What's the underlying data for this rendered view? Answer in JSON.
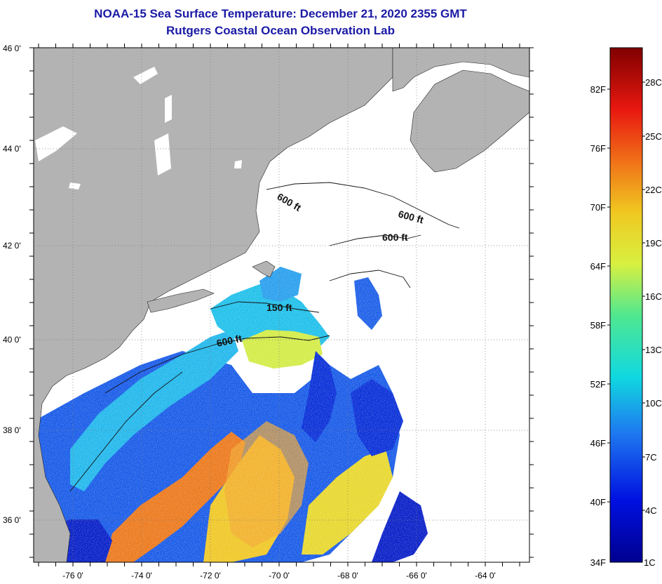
{
  "header": {
    "title_line1": "NOAA-15 Sea Surface Temperature:  December 21, 2020 2355 GMT",
    "title_line2": "Rutgers Coastal Ocean Observation Lab"
  },
  "map": {
    "longitude_ticks": [
      "-76 0'",
      "-74 0'",
      "-72 0'",
      "-70 0'",
      "-68 0'",
      "-66 0'",
      "-64 0'"
    ],
    "latitude_ticks": [
      "46 0'",
      "44 0'",
      "42 0'",
      "40 0'",
      "38 0'",
      "36 0'"
    ],
    "depth_contour_labels": [
      "600 ft",
      "600 ft",
      "600 ft",
      "150 ft",
      "600 ft"
    ]
  },
  "colorbar": {
    "fahrenheit_labels": [
      "82F",
      "76F",
      "70F",
      "64F",
      "58F",
      "52F",
      "46F",
      "40F",
      "34F"
    ],
    "celsius_labels": [
      "28C",
      "25C",
      "22C",
      "19C",
      "16C",
      "13C",
      "10C",
      "7C",
      "4C",
      "1C"
    ]
  },
  "colors": {
    "land": "#b3b3b3",
    "title": "#1a1aa6",
    "cold": "#0018c8",
    "cool": "#2aa8f0",
    "mid": "#10d8d0",
    "warm_yellow": "#e8f040",
    "warm_orange": "#f08020"
  }
}
